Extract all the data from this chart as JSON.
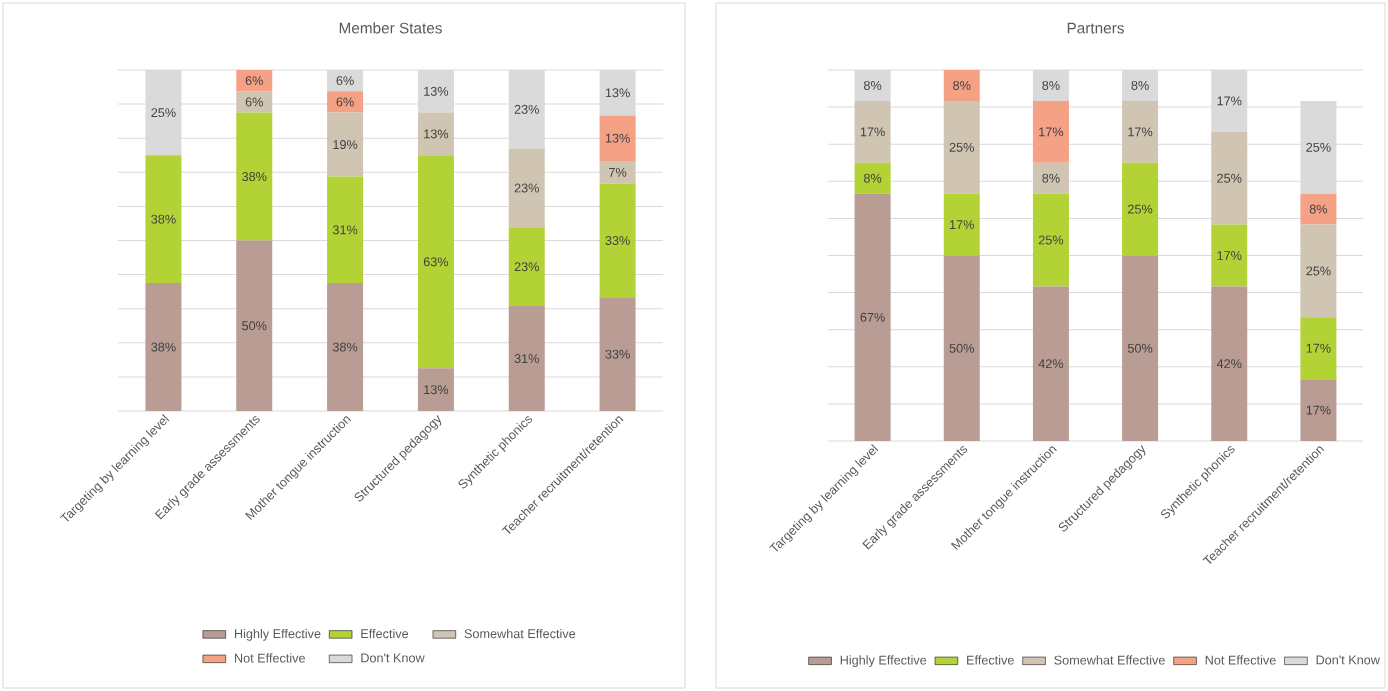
{
  "chart_data": [
    {
      "type": "bar",
      "title": "Member States",
      "stacked": true,
      "categories": [
        "Targeting by learning level",
        "Early grade assessments",
        "Mother tongue instruction",
        "Structured pedagogy",
        "Synthetic phonics",
        "Teacher recruitment/retention"
      ],
      "series": [
        {
          "name": "Highly Effective",
          "color": "#b99c93",
          "values": [
            37.5,
            50,
            37.5,
            12.5,
            30.77,
            33.33
          ],
          "value_labels": [
            "38%",
            "50%",
            "38%",
            "13%",
            "31%",
            "33%"
          ]
        },
        {
          "name": "Effective",
          "color": "#b2d235",
          "values": [
            37.5,
            37.5,
            31.25,
            62.5,
            23.08,
            33.33
          ],
          "value_labels": [
            "38%",
            "38%",
            "31%",
            "63%",
            "23%",
            "33%"
          ]
        },
        {
          "name": "Somewhat Effective",
          "color": "#d0c4b3",
          "values": [
            null,
            6.25,
            18.75,
            12.5,
            23.08,
            6.67
          ],
          "value_labels": [
            null,
            "6%",
            "19%",
            "13%",
            "23%",
            "7%"
          ]
        },
        {
          "name": "Not Effective",
          "color": "#f4a185",
          "values": [
            null,
            6.25,
            6.25,
            null,
            null,
            13.33
          ],
          "value_labels": [
            null,
            "6%",
            "6%",
            null,
            null,
            "13%"
          ]
        },
        {
          "name": "Don't Know",
          "color": "#dadada",
          "values": [
            25,
            null,
            6.25,
            12.5,
            23.07,
            13.33
          ],
          "value_labels": [
            "25%",
            null,
            "6%",
            "13%",
            "23%",
            "13%"
          ]
        }
      ],
      "grid": "y",
      "legend": "bottom",
      "tick_labels": "x"
    },
    {
      "type": "bar",
      "title": "Partners",
      "stacked": true,
      "categories": [
        "Targeting by learning level",
        "Early grade assessments",
        "Mother tongue instruction",
        "Structured pedagogy",
        "Synthetic phonics",
        "Teacher recruitment/retention"
      ],
      "series": [
        {
          "name": "Highly Effective",
          "color": "#b99c93",
          "values": [
            66.67,
            50,
            41.67,
            50,
            41.66,
            16.67
          ],
          "value_labels": [
            "67%",
            "50%",
            "42%",
            "50%",
            "42%",
            "17%"
          ]
        },
        {
          "name": "Effective",
          "color": "#b2d235",
          "values": [
            8.33,
            16.67,
            25,
            25,
            16.67,
            16.67
          ],
          "value_labels": [
            "8%",
            "17%",
            "25%",
            "25%",
            "17%",
            "17%"
          ]
        },
        {
          "name": "Somewhat Effective",
          "color": "#d0c4b3",
          "values": [
            16.67,
            25,
            8.33,
            16.67,
            25,
            25
          ],
          "value_labels": [
            "17%",
            "25%",
            "8%",
            "17%",
            "25%",
            "25%"
          ]
        },
        {
          "name": "Not Effective",
          "color": "#f4a185",
          "values": [
            null,
            8.33,
            16.67,
            null,
            null,
            8.33
          ],
          "value_labels": [
            null,
            "8%",
            "17%",
            null,
            null,
            "8%"
          ]
        },
        {
          "name": "Don't Know",
          "color": "#dadada",
          "values": [
            8.33,
            null,
            8.33,
            8.33,
            16.67,
            25
          ],
          "value_labels": [
            "8%",
            null,
            "8%",
            "8%",
            "17%",
            "25%"
          ]
        }
      ],
      "grid": "y",
      "legend": "bottom",
      "tick_labels": "x"
    }
  ]
}
